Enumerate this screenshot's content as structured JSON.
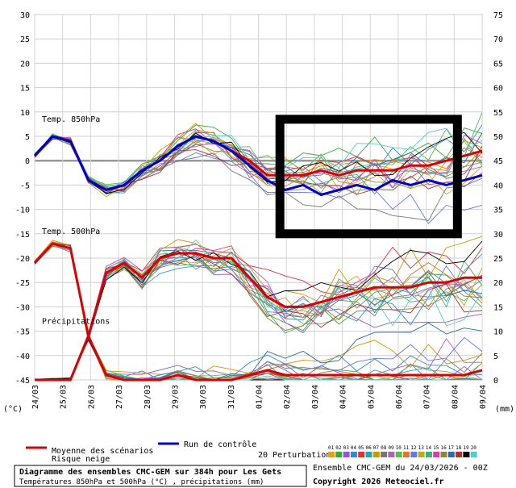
{
  "chart_data": {
    "type": "line",
    "title": "Diagramme des ensembles CMC-GEM sur 384h pour Les Gets",
    "subtitle": "Températures 850hPa et 500hPa (°C) , précipitations (mm)",
    "ensemble_label": "Ensemble CMC-GEM du 24/03/2026 - 00Z",
    "copyright": "Copyright 2026 Meteociel.fr",
    "left_unit": "(°C)",
    "right_unit": "(mm)",
    "y_left_ticks": [
      30,
      25,
      20,
      15,
      10,
      5,
      0,
      -5,
      -10,
      -15,
      -20,
      -25,
      -30,
      -35,
      -40,
      -45
    ],
    "y_right_ticks": [
      75,
      70,
      65,
      60,
      55,
      50,
      45,
      40,
      35,
      30,
      25,
      20,
      15,
      10,
      5,
      0
    ],
    "ylim": [
      -45,
      30
    ],
    "x_dates": [
      "24/03",
      "25/03",
      "26/03",
      "27/03",
      "28/03",
      "29/03",
      "30/03",
      "31/03",
      "01/04",
      "02/04",
      "03/04",
      "04/04",
      "05/04",
      "06/04",
      "07/04",
      "08/04",
      "09/04"
    ],
    "panel_labels": [
      "Temp. 850hPa",
      "Temp. 500hPa",
      "Précipitations"
    ],
    "legend": {
      "mean_label": "Moyenne des scénarios",
      "snow_label": "Risque neige",
      "control_label": "Run de contrôle",
      "perturb_label": "20 Perturbations",
      "perturb_numbers": [
        "01",
        "02",
        "03",
        "04",
        "05",
        "06",
        "07",
        "08",
        "09",
        "10",
        "11",
        "12",
        "13",
        "14",
        "15",
        "16",
        "17",
        "18",
        "19",
        "20"
      ]
    },
    "perturb_colors": [
      "#e6a020",
      "#33aa33",
      "#9955cc",
      "#3388dd",
      "#dd3333",
      "#22aaaa",
      "#cc9900",
      "#777777",
      "#aa66aa",
      "#55bb55",
      "#dd7733",
      "#6677dd",
      "#bbaa22",
      "#44aa77",
      "#cc44aa",
      "#888833",
      "#3366aa",
      "#aa3333",
      "#000000",
      "#55cccc"
    ],
    "series": [
      {
        "name": "Moyenne des scénarios",
        "color": "#dd0000",
        "t850": [
          1,
          5,
          4,
          -4,
          -6,
          -5,
          -2,
          0,
          3,
          5,
          4,
          2,
          0,
          -3,
          -3,
          -3,
          -2,
          -3,
          -2,
          -2,
          -2,
          -1,
          -1,
          0,
          1,
          2
        ],
        "t500": [
          -21,
          -17,
          -18,
          -36,
          -23,
          -21,
          -24,
          -20,
          -19,
          -19,
          -20,
          -20,
          -24,
          -28,
          -30,
          -30,
          -29,
          -28,
          -27,
          -26,
          -26,
          -26,
          -25,
          -25,
          -24,
          -24
        ],
        "precip": [
          -45,
          -45,
          -45,
          -36,
          -44,
          -45,
          -45,
          -45,
          -44,
          -45,
          -45,
          -45,
          -44,
          -43,
          -44,
          -44,
          -44,
          -44,
          -44,
          -44,
          -44,
          -44,
          -44,
          -44,
          -44,
          -43
        ]
      },
      {
        "name": "Run de contrôle",
        "color": "#0000cc",
        "t850": [
          1,
          5,
          4,
          -4,
          -6,
          -5,
          -2,
          0,
          3,
          5,
          4,
          2,
          -1,
          -4,
          -6,
          -5,
          -7,
          -6,
          -5,
          -6,
          -4,
          -5,
          -4,
          -5,
          -4,
          -3
        ],
        "t500": [],
        "precip": []
      }
    ]
  },
  "highlight_box": {
    "from_x": "02/04",
    "to_x": "08/04",
    "y_top": 8.5,
    "y_bottom": -15
  }
}
